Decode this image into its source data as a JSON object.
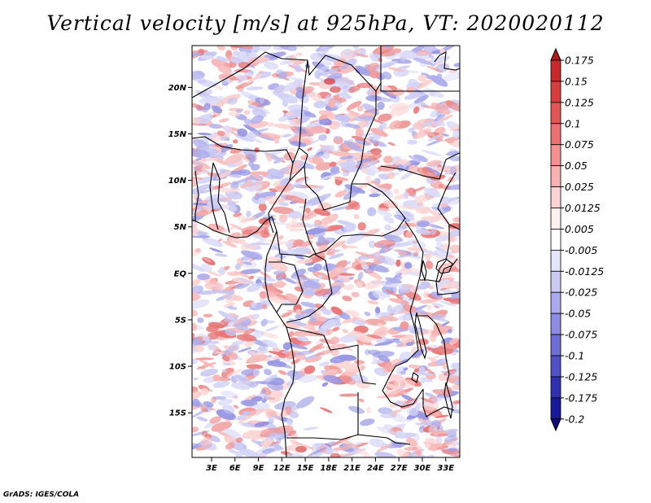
{
  "title": "Vertical velocity [m/s] at 925hPa, VT: 2020020112",
  "footer": "GrADS: IGES/COLA",
  "map": {
    "lat_labels": [
      "20N",
      "15N",
      "10N",
      "5N",
      "EQ",
      "5S",
      "10S",
      "15S"
    ],
    "lat_values": [
      20,
      15,
      10,
      5,
      0,
      -5,
      -10,
      -15
    ],
    "lon_labels": [
      "3E",
      "6E",
      "9E",
      "12E",
      "15E",
      "18E",
      "21E",
      "24E",
      "27E",
      "30E",
      "33E"
    ],
    "lon_values": [
      3,
      6,
      9,
      12,
      15,
      18,
      21,
      24,
      27,
      30,
      33
    ],
    "lon_range": [
      0.5,
      34.8
    ],
    "lat_range": [
      -19.8,
      24.5
    ]
  },
  "colorbar": {
    "labels": [
      "0.175",
      "0.15",
      "0.125",
      "0.1",
      "0.075",
      "0.05",
      "0.025",
      "0.0125",
      "0.005",
      "-0.005",
      "-0.0125",
      "-0.025",
      "-0.05",
      "-0.075",
      "-0.1",
      "-0.125",
      "-0.175",
      "-0.2"
    ],
    "colors": [
      "#b01c1c",
      "#c82828",
      "#d83c3c",
      "#e45454",
      "#ec7070",
      "#f49090",
      "#f8b0b0",
      "#fcd2d2",
      "#fff0f0",
      "#ffffff",
      "#e4e4fa",
      "#cacaf4",
      "#aaaaee",
      "#8c8ce4",
      "#6e6ed8",
      "#5050c8",
      "#3030b4",
      "#18189c",
      "#100c80"
    ]
  }
}
